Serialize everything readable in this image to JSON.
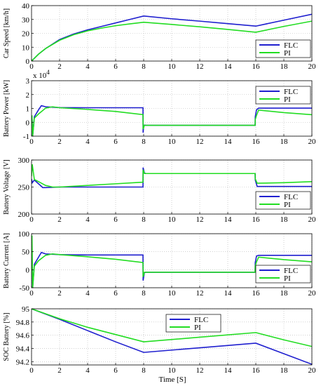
{
  "figure": {
    "xlabel": "Time [S]",
    "colors": {
      "FLC": "#1f1fcf",
      "PI": "#22dd22"
    }
  },
  "chart_data": [
    {
      "type": "line",
      "ylabel": "Car Speed [km/h]",
      "xlim": [
        0,
        20
      ],
      "ylim": [
        0,
        40
      ],
      "xticks": [
        0,
        2,
        4,
        6,
        8,
        10,
        12,
        14,
        16,
        18,
        20
      ],
      "xtick_labels": [
        "0",
        "2",
        "4",
        "6",
        "8",
        "10",
        "12",
        "14",
        "16",
        "18",
        "20"
      ],
      "yticks": [
        0,
        10,
        20,
        30,
        40
      ],
      "ytick_labels": [
        "0",
        "10",
        "20",
        "30",
        "40"
      ],
      "legend": "bottom-right",
      "series": [
        {
          "name": "FLC",
          "color": "#1f1fcf",
          "x": [
            0,
            0.5,
            1,
            2,
            3,
            4,
            5,
            6,
            7,
            8,
            10,
            12,
            14,
            16,
            18,
            20
          ],
          "y": [
            0,
            5,
            9,
            15.5,
            19.5,
            22.5,
            25,
            27.5,
            30,
            32.5,
            30.5,
            28.8,
            27,
            25.2,
            29.5,
            33.8
          ]
        },
        {
          "name": "PI",
          "color": "#22dd22",
          "x": [
            0,
            0.5,
            1,
            2,
            3,
            4,
            5,
            6,
            7,
            8,
            10,
            12,
            14,
            16,
            18,
            20
          ],
          "y": [
            0,
            5,
            9,
            15,
            19,
            21.8,
            23.8,
            25.5,
            26.8,
            28,
            26.4,
            24.7,
            22.8,
            20.8,
            25,
            28.8
          ]
        }
      ]
    },
    {
      "type": "line",
      "ylabel": "Battery Power [kW]",
      "exponent_label": "x 10",
      "exponent_sup": "4",
      "xlim": [
        0,
        20
      ],
      "ylim": [
        -1,
        3
      ],
      "xticks": [
        0,
        2,
        4,
        6,
        8,
        10,
        12,
        14,
        16,
        18,
        20
      ],
      "xtick_labels": [
        "0",
        "2",
        "4",
        "6",
        "8",
        "10",
        "12",
        "14",
        "16",
        "18",
        "20"
      ],
      "yticks": [
        -1,
        0,
        1,
        2,
        3
      ],
      "ytick_labels": [
        "-1",
        "0",
        "1",
        "2",
        "3"
      ],
      "legend": "top-right",
      "series": [
        {
          "name": "FLC",
          "color": "#1f1fcf",
          "x": [
            0,
            0.03,
            0.08,
            0.2,
            0.5,
            0.7,
            1,
            2,
            4,
            6,
            7.95,
            7.96,
            8.0,
            8.05,
            8.15,
            12,
            15.95,
            15.96,
            16.05,
            16.2,
            18,
            20
          ],
          "y": [
            0,
            0.4,
            -1,
            0.4,
            0.9,
            1.2,
            1.12,
            1.06,
            1.05,
            1.05,
            1.05,
            -0.75,
            -0.3,
            -0.2,
            -0.22,
            -0.22,
            -0.22,
            0.4,
            0.9,
            1.02,
            1.02,
            1.02
          ]
        },
        {
          "name": "PI",
          "color": "#22dd22",
          "x": [
            0,
            0.03,
            0.08,
            0.2,
            0.5,
            1,
            1.5,
            2,
            4,
            6,
            7.95,
            7.96,
            8.05,
            8.15,
            12,
            15.95,
            15.96,
            16.05,
            16.2,
            18,
            20
          ],
          "y": [
            0,
            0.5,
            -1,
            0.3,
            0.6,
            1.02,
            1.12,
            1.05,
            0.93,
            0.78,
            0.55,
            -0.5,
            -0.22,
            -0.22,
            -0.22,
            -0.22,
            0.2,
            0.5,
            0.88,
            0.7,
            0.55
          ]
        }
      ]
    },
    {
      "type": "line",
      "ylabel": "Battery Voltage [V]",
      "xlim": [
        0,
        20
      ],
      "ylim": [
        200,
        300
      ],
      "xticks": [
        0,
        2,
        4,
        6,
        8,
        10,
        12,
        14,
        16,
        18,
        20
      ],
      "xtick_labels": [
        "0",
        "2",
        "4",
        "6",
        "8",
        "10",
        "12",
        "14",
        "16",
        "18",
        "20"
      ],
      "yticks": [
        200,
        250,
        300
      ],
      "ytick_labels": [
        "200",
        "250",
        "300"
      ],
      "legend": "bottom-right",
      "series": [
        {
          "name": "FLC",
          "color": "#1f1fcf",
          "x": [
            0,
            0.05,
            0.2,
            0.5,
            0.8,
            1,
            2,
            4,
            6,
            7.95,
            7.96,
            8.05,
            8.15,
            12,
            15.95,
            15.96,
            16.1,
            18,
            20
          ],
          "y": [
            265,
            258,
            263,
            256,
            249,
            249,
            250,
            250,
            250,
            250,
            286,
            276,
            275,
            275,
            275,
            263,
            251,
            251,
            251
          ]
        },
        {
          "name": "PI",
          "color": "#22dd22",
          "x": [
            0,
            0.05,
            0.2,
            0.5,
            1,
            1.5,
            2,
            4,
            6,
            7.95,
            7.96,
            8.05,
            8.15,
            12,
            15.95,
            15.96,
            16.1,
            18,
            20
          ],
          "y": [
            270,
            292,
            264,
            260,
            253,
            250,
            250,
            253,
            256,
            259,
            282,
            275,
            275,
            275,
            275,
            265,
            257,
            258,
            260
          ]
        }
      ]
    },
    {
      "type": "line",
      "ylabel": "Battery Current [A]",
      "xlim": [
        0,
        20
      ],
      "ylim": [
        -50,
        100
      ],
      "xticks": [
        0,
        2,
        4,
        6,
        8,
        10,
        12,
        14,
        16,
        18,
        20
      ],
      "xtick_labels": [
        "0",
        "2",
        "4",
        "6",
        "8",
        "10",
        "12",
        "14",
        "16",
        "18",
        "20"
      ],
      "yticks": [
        -50,
        0,
        50,
        100
      ],
      "ytick_labels": [
        "-50",
        "0",
        "50",
        "100"
      ],
      "legend": "bottom-right",
      "series": [
        {
          "name": "FLC",
          "color": "#1f1fcf",
          "x": [
            0,
            0.03,
            0.08,
            0.2,
            0.5,
            0.7,
            1,
            2,
            4,
            6,
            7.95,
            7.96,
            8.05,
            8.15,
            12,
            15.95,
            15.96,
            16.05,
            16.2,
            18,
            20
          ],
          "y": [
            0,
            40,
            -50,
            15,
            35,
            48,
            44,
            42,
            41,
            41,
            41,
            -30,
            -8,
            -7,
            -7,
            -7,
            20,
            38,
            40,
            40,
            40
          ]
        },
        {
          "name": "PI",
          "color": "#22dd22",
          "x": [
            0,
            0.03,
            0.08,
            0.2,
            0.5,
            1,
            1.5,
            2,
            4,
            6,
            7.95,
            7.96,
            8.05,
            8.15,
            12,
            15.95,
            15.96,
            16.05,
            16.2,
            18,
            20
          ],
          "y": [
            0,
            95,
            -50,
            10,
            25,
            40,
            44,
            42,
            36,
            29,
            20,
            -20,
            -7,
            -7,
            -7,
            -7,
            10,
            22,
            35,
            28,
            22
          ]
        }
      ]
    },
    {
      "type": "line",
      "ylabel": "SOC Battery [%]",
      "xlim": [
        0,
        20
      ],
      "ylim": [
        94.15,
        95
      ],
      "xticks": [
        0,
        2,
        4,
        6,
        8,
        10,
        12,
        14,
        16,
        18,
        20
      ],
      "xtick_labels": [
        "0",
        "2",
        "4",
        "6",
        "8",
        "10",
        "12",
        "14",
        "16",
        "18",
        "20"
      ],
      "yticks": [
        94.2,
        94.4,
        94.6,
        94.8,
        95
      ],
      "ytick_labels": [
        "94.2",
        "94.4",
        "94.6",
        "94.8",
        "95"
      ],
      "legend": "top-center",
      "series": [
        {
          "name": "FLC",
          "color": "#1f1fcf",
          "x": [
            0,
            2,
            4,
            6,
            8,
            12,
            16,
            18,
            20
          ],
          "y": [
            95,
            94.84,
            94.67,
            94.5,
            94.34,
            94.41,
            94.48,
            94.32,
            94.16
          ]
        },
        {
          "name": "PI",
          "color": "#22dd22",
          "x": [
            0,
            2,
            4,
            6,
            8,
            12,
            16,
            18,
            20
          ],
          "y": [
            95,
            94.85,
            94.72,
            94.61,
            94.5,
            94.57,
            94.64,
            94.53,
            94.43
          ]
        }
      ]
    }
  ]
}
